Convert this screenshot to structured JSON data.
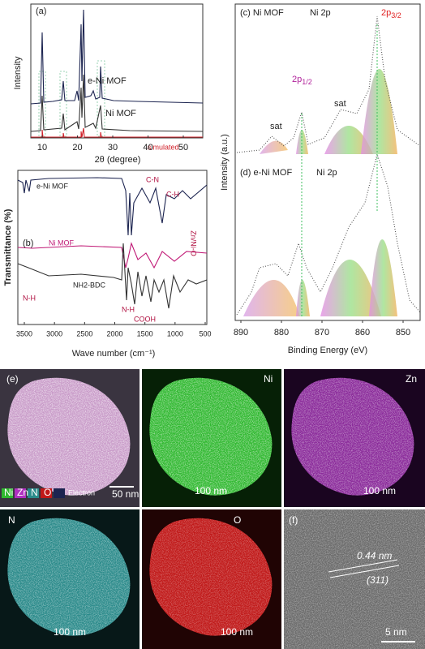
{
  "panels": {
    "a": {
      "label": "(a)",
      "y_label": "Intensity",
      "x_label": "2θ (degree)",
      "x_ticks": [
        "10",
        "20",
        "30",
        "40",
        "50"
      ],
      "series": [
        "e-Ni MOF",
        "Ni MOF",
        "simulated"
      ]
    },
    "b": {
      "label": "(b)",
      "y_label": "Transmittance (%)",
      "x_label": "Wave number (cm⁻¹)",
      "x_ticks": [
        "3500",
        "3000",
        "2500",
        "2000",
        "1500",
        "1000",
        "500"
      ],
      "series": [
        "e-Ni MOF",
        "Ni MOF",
        "NH2-BDC"
      ],
      "annotations": [
        "C-N",
        "C-H",
        "Zn/Ni-O",
        "N-H",
        "N-H",
        "COOH"
      ]
    },
    "c": {
      "label": "(c) Ni MOF",
      "element": "Ni 2p",
      "peak_main": {
        "text": "2p",
        "sub": "3/2"
      },
      "peak_minor": {
        "text": "2p",
        "sub": "1/2"
      },
      "sat": [
        "sat",
        "sat"
      ]
    },
    "d": {
      "label": "(d) e-Ni MOF",
      "element": "Ni 2p"
    },
    "cd": {
      "y_label": "Intensity (a.u.)",
      "x_label": "Binding Energy (eV)",
      "x_ticks": [
        "890",
        "880",
        "870",
        "860",
        "850"
      ]
    },
    "e": {
      "label": "(e)",
      "legend": [
        "Ni",
        "Zn",
        "N",
        "O",
        "Electron"
      ],
      "scale_bar": "50 nm",
      "maps": [
        {
          "element": "Ni",
          "scale_bar": "100 nm"
        },
        {
          "element": "Zn",
          "scale_bar": "100 nm"
        },
        {
          "element": "N",
          "scale_bar": "100 nm"
        },
        {
          "element": "O",
          "scale_bar": "100 nm"
        }
      ]
    },
    "f": {
      "label": "(f)",
      "spacing": "0.44 nm",
      "plane": "(311)",
      "scale_bar": "5 nm"
    }
  }
}
